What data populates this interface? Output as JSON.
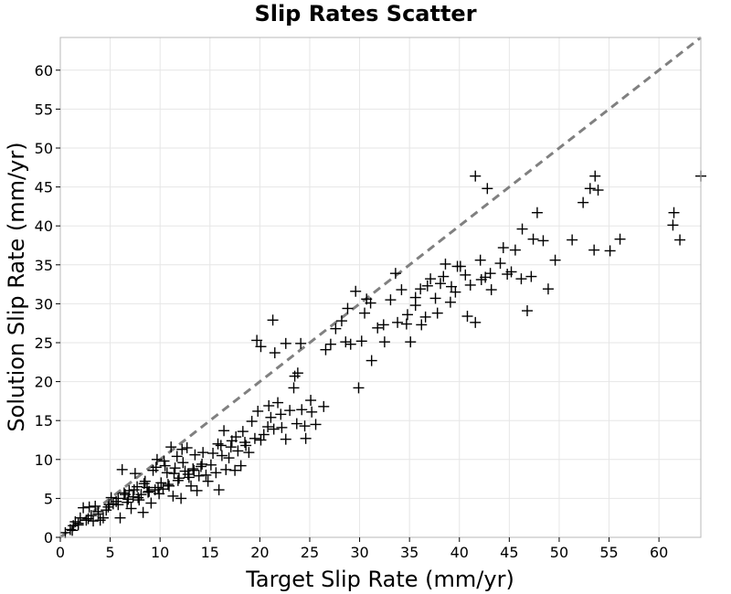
{
  "chart_data": {
    "type": "scatter",
    "title": "Slip Rates Scatter",
    "xlabel": "Target Slip Rate (mm/yr)",
    "ylabel": "Solution Slip Rate (mm/yr)",
    "xlim": [
      0,
      64.2
    ],
    "ylim": [
      0,
      64.2
    ],
    "xticks": [
      "0",
      "5",
      "10",
      "15",
      "20",
      "25",
      "30",
      "35",
      "40",
      "45",
      "50",
      "55",
      "60"
    ],
    "yticks": [
      "0",
      "5",
      "10",
      "15",
      "20",
      "25",
      "30",
      "35",
      "40",
      "45",
      "50",
      "55",
      "60"
    ],
    "grid": true,
    "legend": "none",
    "marker": "plus",
    "marker_color": "#000000",
    "reference_line": {
      "style": "dashed",
      "color": "#808080",
      "x": [
        0,
        64.2
      ],
      "y": [
        0,
        64.2
      ]
    },
    "points": [
      [
        0.5,
        0.6
      ],
      [
        1,
        1
      ],
      [
        1.3,
        1.5
      ],
      [
        1.5,
        2
      ],
      [
        1.8,
        1.8
      ],
      [
        2,
        2.5
      ],
      [
        2.3,
        3.8
      ],
      [
        2.6,
        2.2
      ],
      [
        2.9,
        3.9
      ],
      [
        3.1,
        2.8
      ],
      [
        3.3,
        2.1
      ],
      [
        3.5,
        4
      ],
      [
        3.8,
        3
      ],
      [
        4,
        2.2
      ],
      [
        4.3,
        2.5
      ],
      [
        4.6,
        3.5
      ],
      [
        4.9,
        4.2
      ],
      [
        5.1,
        5.1
      ],
      [
        5.3,
        4.3
      ],
      [
        5.6,
        4.6
      ],
      [
        5.8,
        5
      ],
      [
        6,
        2.5
      ],
      [
        6.2,
        8.7
      ],
      [
        6.5,
        5.5
      ],
      [
        6.7,
        4.5
      ],
      [
        6.9,
        6
      ],
      [
        7.1,
        3.7
      ],
      [
        7.3,
        5.2
      ],
      [
        7.5,
        8.2
      ],
      [
        7.7,
        6.5
      ],
      [
        7.9,
        4.8
      ],
      [
        8.1,
        5.5
      ],
      [
        8.3,
        3.2
      ],
      [
        8.5,
        7.2
      ],
      [
        8.7,
        6.4
      ],
      [
        8.9,
        5.9
      ],
      [
        9.1,
        4.4
      ],
      [
        9.3,
        8.6
      ],
      [
        9.5,
        6.1
      ],
      [
        9.7,
        10
      ],
      [
        9.9,
        5.6
      ],
      [
        10.1,
        7
      ],
      [
        10.3,
        6.2
      ],
      [
        10.5,
        9.2
      ],
      [
        10.7,
        8.3
      ],
      [
        10.9,
        6.6
      ],
      [
        11.1,
        11.6
      ],
      [
        11.3,
        5.3
      ],
      [
        11.5,
        8.9
      ],
      [
        11.7,
        10.4
      ],
      [
        11.9,
        7.6
      ],
      [
        12.1,
        5
      ],
      [
        12.3,
        9.6
      ],
      [
        12.5,
        8.5
      ],
      [
        12.7,
        11.5
      ],
      [
        12.9,
        7.7
      ],
      [
        13.1,
        6.6
      ],
      [
        13.3,
        8.8
      ],
      [
        13.5,
        10.6
      ],
      [
        13.7,
        6
      ],
      [
        13.9,
        7.9
      ],
      [
        14.1,
        9.1
      ],
      [
        14.3,
        10.9
      ],
      [
        14.6,
        8
      ],
      [
        14.8,
        7.2
      ],
      [
        15.1,
        9.3
      ],
      [
        15.3,
        10.8
      ],
      [
        15.6,
        8.3
      ],
      [
        15.9,
        6.1
      ],
      [
        16.1,
        11.8
      ],
      [
        16.4,
        13.7
      ],
      [
        16.6,
        8.7
      ],
      [
        16.9,
        10.2
      ],
      [
        17.2,
        12.4
      ],
      [
        17.5,
        8.6
      ],
      [
        17.8,
        11.1
      ],
      [
        18.1,
        9.2
      ],
      [
        18.3,
        13.6
      ],
      [
        18.6,
        11.8
      ],
      [
        18.9,
        10.9
      ],
      [
        19.2,
        14.9
      ],
      [
        19.5,
        12.7
      ],
      [
        19.8,
        16.2
      ],
      [
        20.1,
        12.5
      ],
      [
        20.4,
        13.2
      ],
      [
        20.8,
        14.2
      ],
      [
        21.1,
        15.4
      ],
      [
        21.4,
        13.9
      ],
      [
        21.8,
        17.3
      ],
      [
        22.2,
        14.1
      ],
      [
        22.6,
        12.6
      ],
      [
        23,
        16.3
      ],
      [
        23.4,
        19.2
      ],
      [
        23.8,
        21.1
      ],
      [
        24.2,
        16.4
      ],
      [
        24.6,
        12.7
      ],
      [
        25.1,
        17.6
      ],
      [
        25.6,
        14.5
      ],
      [
        26.4,
        16.8
      ],
      [
        24.5,
        14.3
      ],
      [
        23.7,
        14.6
      ],
      [
        20.9,
        16.9
      ],
      [
        19.7,
        25.3
      ],
      [
        20.1,
        24.5
      ],
      [
        21.3,
        27.9
      ],
      [
        21.5,
        23.7
      ],
      [
        22.6,
        24.9
      ],
      [
        24.1,
        24.9
      ],
      [
        26.6,
        24.1
      ],
      [
        27.1,
        24.8
      ],
      [
        27.6,
        26.8
      ],
      [
        28.2,
        27.8
      ],
      [
        28.8,
        29.4
      ],
      [
        29.1,
        24.8
      ],
      [
        29.6,
        31.6
      ],
      [
        30.2,
        25.2
      ],
      [
        30.7,
        30.6
      ],
      [
        31.2,
        22.7
      ],
      [
        31.8,
        26.9
      ],
      [
        32.5,
        25.1
      ],
      [
        33.1,
        30.5
      ],
      [
        33.6,
        33.9
      ],
      [
        34.2,
        31.8
      ],
      [
        34.7,
        27.4
      ],
      [
        35.1,
        25.1
      ],
      [
        35.6,
        29.8
      ],
      [
        36.1,
        31.9
      ],
      [
        36.6,
        28.3
      ],
      [
        37.1,
        33.2
      ],
      [
        37.6,
        30.7
      ],
      [
        38.1,
        32.6
      ],
      [
        38.6,
        35.1
      ],
      [
        39.1,
        30.2
      ],
      [
        39.6,
        31.5
      ],
      [
        40.1,
        34.8
      ],
      [
        40.6,
        33.7
      ],
      [
        41.1,
        32.4
      ],
      [
        41.6,
        27.6
      ],
      [
        42.1,
        35.6
      ],
      [
        42.6,
        33.4
      ],
      [
        43.2,
        31.8
      ],
      [
        44.1,
        35.2
      ],
      [
        44.8,
        33.8
      ],
      [
        45.6,
        36.9
      ],
      [
        46.3,
        39.6
      ],
      [
        46.8,
        29.1
      ],
      [
        47.4,
        38.3
      ],
      [
        47.8,
        41.7
      ],
      [
        48.4,
        38.1
      ],
      [
        48.9,
        31.9
      ],
      [
        49.6,
        35.6
      ],
      [
        51.3,
        38.2
      ],
      [
        52.4,
        43
      ],
      [
        53.1,
        44.8
      ],
      [
        53.6,
        46.4
      ],
      [
        53.9,
        44.6
      ],
      [
        55.1,
        36.8
      ],
      [
        56.1,
        38.3
      ],
      [
        61.5,
        41.7
      ],
      [
        62.1,
        38.2
      ],
      [
        61.4,
        40.1
      ],
      [
        64.2,
        46.4
      ],
      [
        41.6,
        46.4
      ],
      [
        42.8,
        44.8
      ],
      [
        53.5,
        36.9
      ],
      [
        29.9,
        19.2
      ],
      [
        30.5,
        28.8
      ],
      [
        32.4,
        27.3
      ],
      [
        35.6,
        30.8
      ],
      [
        37.8,
        28.8
      ],
      [
        39.2,
        32.2
      ],
      [
        40.8,
        28.4
      ],
      [
        43.1,
        33.9
      ],
      [
        46.2,
        33.2
      ],
      [
        39.8,
        34.8
      ],
      [
        36.8,
        32.3
      ],
      [
        34.8,
        28.6
      ],
      [
        33.8,
        27.6
      ],
      [
        31.1,
        30.1
      ],
      [
        28.6,
        25.1
      ],
      [
        25.2,
        16.1
      ],
      [
        23.5,
        20.7
      ],
      [
        22.1,
        15.8
      ],
      [
        18.5,
        12.2
      ],
      [
        17.1,
        11.6
      ],
      [
        16.2,
        10.5
      ],
      [
        14.2,
        9.4
      ],
      [
        12.8,
        8.1
      ],
      [
        11.8,
        7.3
      ],
      [
        10.8,
        6.8
      ],
      [
        9.8,
        6.4
      ],
      [
        8.8,
        5.8
      ],
      [
        7.8,
        5.1
      ],
      [
        6.8,
        4.9
      ],
      [
        5.8,
        4.2
      ],
      [
        4.8,
        3.9
      ],
      [
        3.8,
        3.3
      ],
      [
        2.8,
        2.4
      ],
      [
        1.8,
        1.6
      ],
      [
        1.2,
        0.9
      ],
      [
        12.2,
        11.3
      ],
      [
        13.4,
        8.6
      ],
      [
        9.6,
        9
      ],
      [
        10.4,
        9.8
      ],
      [
        11.4,
        8.2
      ],
      [
        8.4,
        6.9
      ],
      [
        7.4,
        6.1
      ],
      [
        6.4,
        5.7
      ],
      [
        15.8,
        12
      ],
      [
        17.6,
        12.9
      ],
      [
        44.4,
        37.2
      ],
      [
        47.2,
        33.5
      ],
      [
        38.4,
        33.5
      ],
      [
        36.2,
        27.3
      ],
      [
        45.2,
        34.1
      ],
      [
        42.2,
        33.1
      ]
    ]
  }
}
